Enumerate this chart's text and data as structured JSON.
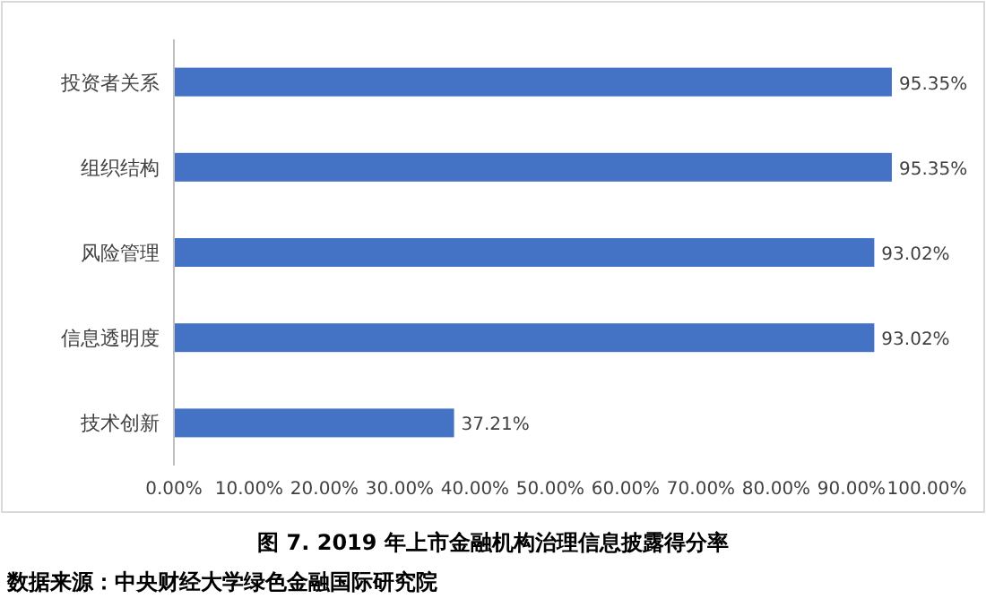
{
  "chart_data": {
    "type": "bar",
    "orientation": "horizontal",
    "title": "图 7. 2019 年上市金融机构治理信息披露得分率",
    "annotations": [
      "数据来源：中央财经大学绿色金融国际研究院"
    ],
    "categories": [
      "投资者关系",
      "组织结构",
      "风险管理",
      "信息透明度",
      "技术创新"
    ],
    "values": [
      95.35,
      95.35,
      93.02,
      93.02,
      37.21
    ],
    "value_labels": [
      "95.35%",
      "95.35%",
      "93.02%",
      "93.02%",
      "37.21%"
    ],
    "color": "#4472c4",
    "xlim": [
      0,
      100
    ],
    "xticks": [
      {
        "value": 0,
        "label": "0.00%"
      },
      {
        "value": 10,
        "label": "10.00%"
      },
      {
        "value": 20,
        "label": "20.00%"
      },
      {
        "value": 30,
        "label": "30.00%"
      },
      {
        "value": 40,
        "label": "40.00%"
      },
      {
        "value": 50,
        "label": "50.00%"
      },
      {
        "value": 60,
        "label": "60.00%"
      },
      {
        "value": 70,
        "label": "70.00%"
      },
      {
        "value": 80,
        "label": "80.00%"
      },
      {
        "value": 90,
        "label": "90.00%"
      },
      {
        "value": 100,
        "label": "100.00%"
      }
    ]
  }
}
